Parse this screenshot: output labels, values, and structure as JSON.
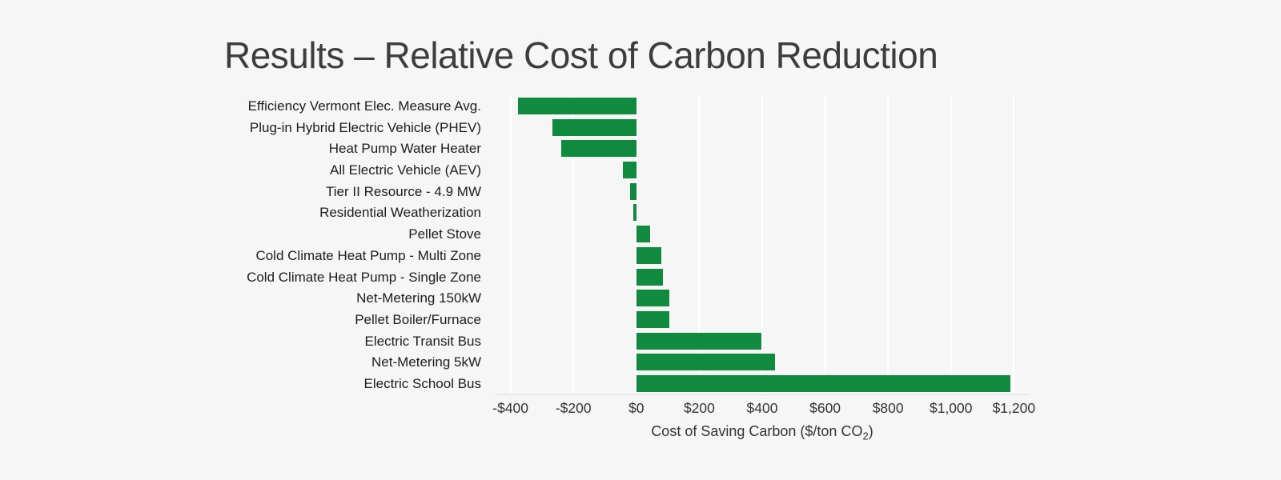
{
  "page": {
    "background_color": "#f6f6f6"
  },
  "title": "Results – Relative Cost of Carbon Reduction",
  "chart_data": {
    "type": "bar",
    "orientation": "horizontal",
    "title": "Results – Relative Cost of Carbon Reduction",
    "xlabel": "Cost of Saving Carbon ($/ton CO₂)",
    "xlabel_parts": {
      "prefix": "Cost of Saving Carbon ($/ton CO",
      "sub": "2",
      "suffix": ")"
    },
    "ylabel": "",
    "bar_color": "#0f8a3e",
    "grid": "vertical-white-lines",
    "legend_position": "none",
    "xlim": [
      -450,
      1250
    ],
    "categories": [
      "Efficiency Vermont Elec. Measure Avg.",
      "Plug-in Hybrid Electric Vehicle (PHEV)",
      "Heat Pump Water Heater",
      "All Electric Vehicle (AEV)",
      "Tier II Resource - 4.9 MW",
      "Residential Weatherization",
      "Pellet Stove",
      "Cold Climate Heat Pump - Multi Zone",
      "Cold Climate Heat Pump - Single Zone",
      "Net-Metering 150kW",
      "Pellet Boiler/Furnace",
      "Electric Transit Bus",
      "Net-Metering 5kW",
      "Electric School Bus"
    ],
    "values": [
      -375,
      -268,
      -240,
      -42,
      -20,
      -9,
      45,
      79,
      84,
      104,
      106,
      398,
      440,
      1190
    ],
    "xticks": [
      {
        "value": -400,
        "label": "-$400"
      },
      {
        "value": -200,
        "label": "-$200"
      },
      {
        "value": 0,
        "label": "$0"
      },
      {
        "value": 200,
        "label": "$200"
      },
      {
        "value": 400,
        "label": "$400"
      },
      {
        "value": 600,
        "label": "$600"
      },
      {
        "value": 800,
        "label": "$800"
      },
      {
        "value": 1000,
        "label": "$1,000"
      },
      {
        "value": 1200,
        "label": "$1,200"
      }
    ]
  }
}
